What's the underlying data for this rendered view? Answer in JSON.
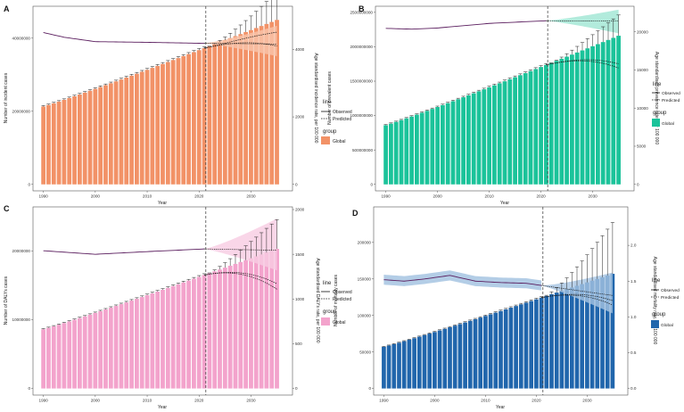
{
  "x_axis": {
    "label": "Year",
    "ticks": [
      1990,
      2000,
      2010,
      2020,
      2030
    ],
    "range": [
      1988,
      2038
    ]
  },
  "legend": {
    "line_title": "line",
    "observed_label": "Observed",
    "predicted_label": "Predicted",
    "group_title": "group",
    "group_label": "Global"
  },
  "chart_data": [
    {
      "panel": "A",
      "type": "bar",
      "ylabel": "Number of incident cases",
      "y2label": "Age standardised incidence rate, per 100 000",
      "ylim": [
        0,
        48000000
      ],
      "y2lim": [
        0,
        5200
      ],
      "yticks": [
        {
          "v": 0,
          "label": "0"
        },
        {
          "v": 20000000,
          "label": "20000000"
        },
        {
          "v": 40000000,
          "label": "40000000"
        }
      ],
      "y2ticks": [
        {
          "v": 0,
          "label": "0"
        },
        {
          "v": 2000,
          "label": "2000"
        },
        {
          "v": 4000,
          "label": "4000"
        }
      ],
      "bar_start": 21300000,
      "bar_end": 45000000,
      "pred_center_end": 41800000,
      "pred_low_end": 38000000,
      "pred_high_end": 53000000,
      "asr_observed": [
        [
          1990,
          4500
        ],
        [
          1994,
          4360
        ],
        [
          2000,
          4230
        ],
        [
          2010,
          4210
        ],
        [
          2021,
          4180
        ]
      ],
      "asr_pred_end": 4160,
      "asr_band_low_end": 3800,
      "asr_band_high_end": 4700,
      "colors": {
        "bar": "#f29267",
        "band": "#f9c6ad"
      }
    },
    {
      "panel": "B",
      "type": "bar",
      "ylabel": "Number of prevalent cases",
      "y2label": "Age standardised prevalence rate, per 100 000",
      "ylim": [
        0,
        2550000000
      ],
      "y2lim": [
        0,
        23000
      ],
      "yticks": [
        {
          "v": 0,
          "label": "0"
        },
        {
          "v": 500000000,
          "label": "500000000"
        },
        {
          "v": 1000000000,
          "label": "1000000000"
        },
        {
          "v": 1500000000,
          "label": "1500000000"
        },
        {
          "v": 2000000000,
          "label": "2000000000"
        },
        {
          "v": 2500000000,
          "label": "2500000000"
        }
      ],
      "y2ticks": [
        {
          "v": 0,
          "label": "0"
        },
        {
          "v": 5000,
          "label": "5000"
        },
        {
          "v": 10000,
          "label": "10000"
        },
        {
          "v": 15000,
          "label": "15000"
        },
        {
          "v": 20000,
          "label": "20000"
        }
      ],
      "bar_start": 860000000,
      "bar_end": 2160000000,
      "pred_center_end": 1760000000,
      "pred_low_end": 1700000000,
      "pred_high_end": 2470000000,
      "asr_observed": [
        [
          1990,
          20450
        ],
        [
          1995,
          20350
        ],
        [
          2000,
          20500
        ],
        [
          2010,
          21100
        ],
        [
          2021,
          21450
        ]
      ],
      "asr_pred_end": 21400,
      "asr_band_low_end": 19800,
      "asr_band_high_end": 22900,
      "colors": {
        "bar": "#1bc39a",
        "band": "#9fe6d3"
      }
    },
    {
      "panel": "C",
      "type": "bar",
      "ylabel": "Number of DALYs cases",
      "y2label": "Age standardised DALYs rate, per 100 000",
      "ylim": [
        0,
        26000000
      ],
      "y2lim": [
        0,
        2000
      ],
      "yticks": [
        {
          "v": 0,
          "label": "0"
        },
        {
          "v": 10000000,
          "label": "10000000"
        },
        {
          "v": 20000000,
          "label": "20000000"
        }
      ],
      "y2ticks": [
        {
          "v": 0,
          "label": "0"
        },
        {
          "v": 500,
          "label": "500"
        },
        {
          "v": 1000,
          "label": "1000"
        },
        {
          "v": 1500,
          "label": "1500"
        },
        {
          "v": 2000,
          "label": "2000"
        }
      ],
      "bar_start": 8600000,
      "bar_end": 20300000,
      "pred_center_end": 15300000,
      "pred_low_end": 14500000,
      "pred_high_end": 24600000,
      "asr_observed": [
        [
          1990,
          1540
        ],
        [
          2000,
          1500
        ],
        [
          2010,
          1530
        ],
        [
          2021,
          1560
        ]
      ],
      "asr_pred_end": 1545,
      "asr_band_low_end": 1320,
      "asr_band_high_end": 1900,
      "colors": {
        "bar": "#f3a3cc",
        "band": "#f8cce2"
      }
    },
    {
      "panel": "D",
      "type": "bar",
      "ylabel": "Number of mortality cases",
      "y2label": "Age standardised mortality rate, per 100 000",
      "ylim": [
        0,
        245000
      ],
      "y2lim": [
        0,
        2.5
      ],
      "yticks": [
        {
          "v": 0,
          "label": "0"
        },
        {
          "v": 50000,
          "label": "50000"
        },
        {
          "v": 100000,
          "label": "100000"
        },
        {
          "v": 150000,
          "label": "150000"
        },
        {
          "v": 200000,
          "label": "200000"
        }
      ],
      "y2ticks": [
        {
          "v": 0,
          "label": "0.0"
        },
        {
          "v": 0.5,
          "label": "0.5"
        },
        {
          "v": 1.0,
          "label": "1.0"
        },
        {
          "v": 1.5,
          "label": "1.5"
        },
        {
          "v": 2.0,
          "label": "2.0"
        }
      ],
      "bar_start": 57000,
      "bar_end": 157000,
      "pred_center_end": 121000,
      "pred_low_end": 115000,
      "pred_high_end": 228000,
      "asr_observed": [
        [
          1990,
          1.52
        ],
        [
          1994,
          1.5
        ],
        [
          1998,
          1.53
        ],
        [
          2003,
          1.58
        ],
        [
          2008,
          1.5
        ],
        [
          2013,
          1.48
        ],
        [
          2018,
          1.47
        ],
        [
          2021,
          1.44
        ]
      ],
      "asr_pred_end": 1.3,
      "asr_band_low_end": 1.05,
      "asr_band_high_end": 1.62,
      "asr_observed_band": 0.07,
      "colors": {
        "bar": "#2166ac",
        "band": "#a6c4e2"
      }
    }
  ]
}
